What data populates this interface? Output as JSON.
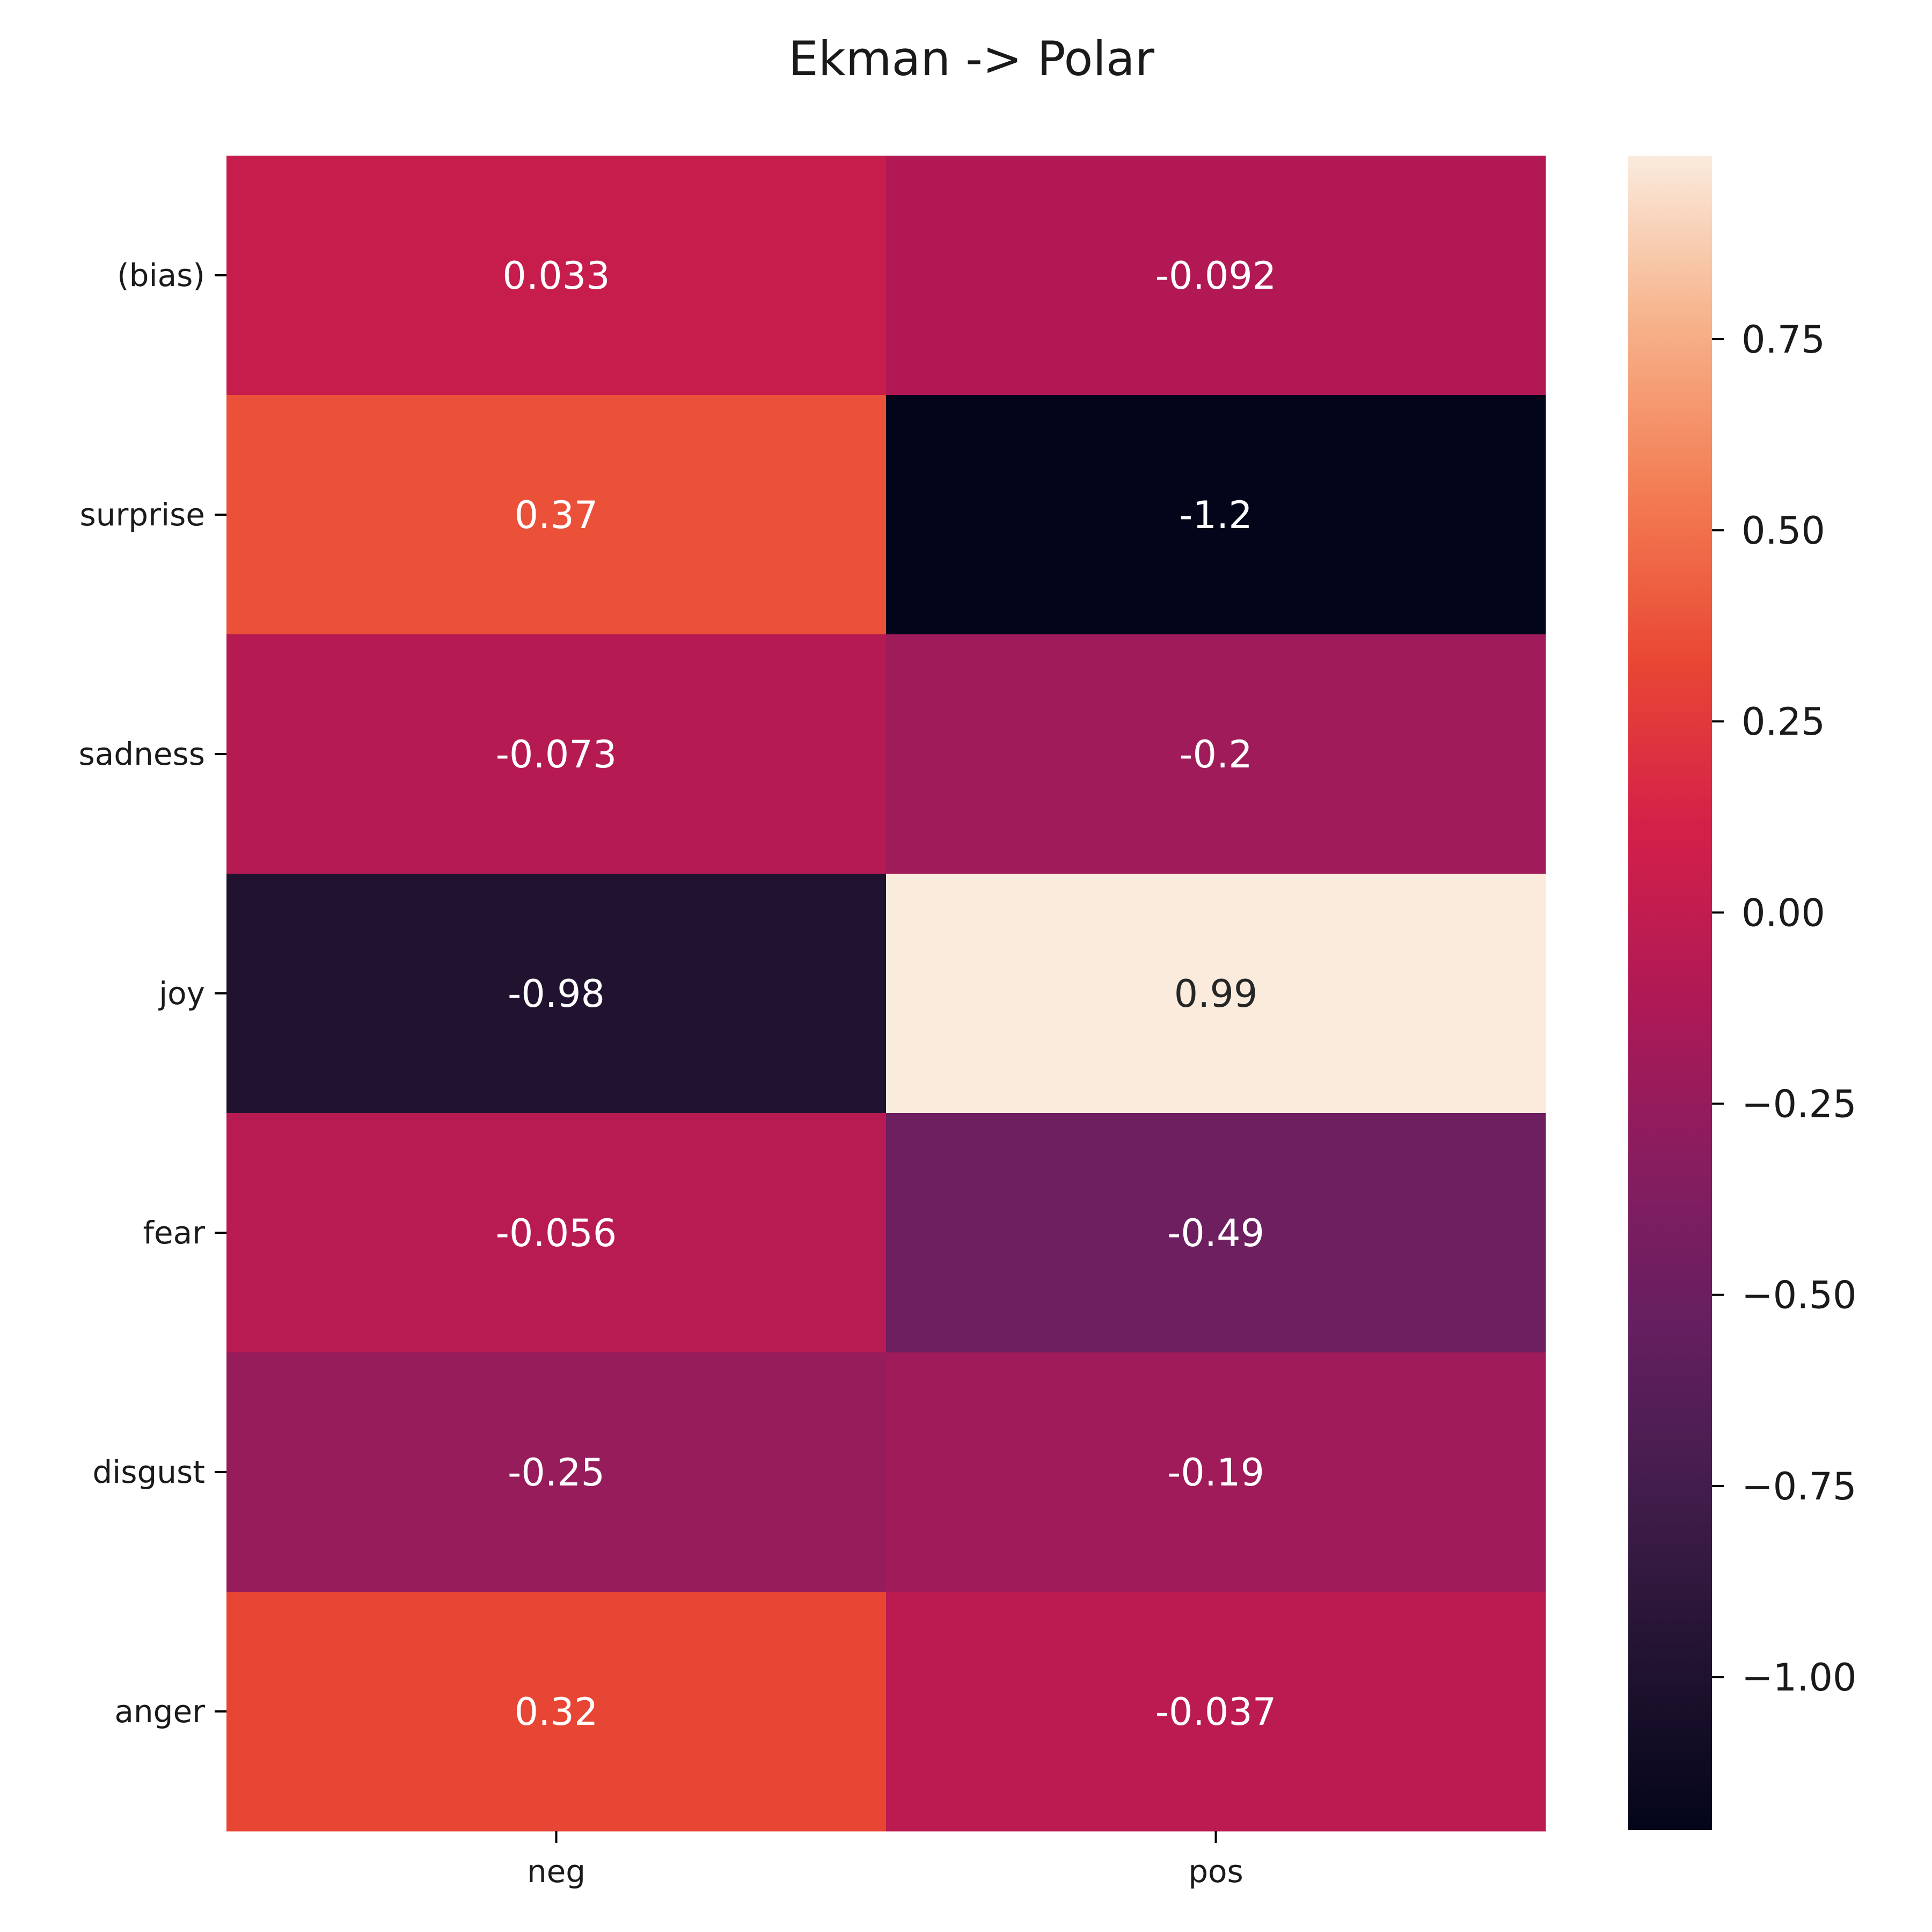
{
  "chart_data": {
    "type": "heatmap",
    "title": "Ekman -> Polar",
    "x_categories": [
      "neg",
      "pos"
    ],
    "y_categories": [
      "(bias)",
      "surprise",
      "sadness",
      "joy",
      "fear",
      "disgust",
      "anger"
    ],
    "values": [
      [
        0.033,
        -0.092
      ],
      [
        0.37,
        -1.2
      ],
      [
        -0.073,
        -0.2
      ],
      [
        -0.98,
        0.99
      ],
      [
        -0.056,
        -0.49
      ],
      [
        -0.25,
        -0.19
      ],
      [
        0.32,
        -0.037
      ]
    ],
    "cell_labels": [
      [
        "0.033",
        "-0.092"
      ],
      [
        "0.37",
        "-1.2"
      ],
      [
        "-0.073",
        "-0.2"
      ],
      [
        "-0.98",
        "0.99"
      ],
      [
        "-0.056",
        "-0.49"
      ],
      [
        "-0.25",
        "-0.19"
      ],
      [
        "0.32",
        "-0.037"
      ]
    ],
    "colorbar": {
      "vmin": -1.2,
      "vmax": 0.99,
      "ticks": [
        0.75,
        0.5,
        0.25,
        0.0,
        -0.25,
        -0.5,
        -0.75,
        -1.0
      ],
      "tick_labels": [
        "0.75",
        "0.50",
        "0.25",
        "0.00",
        "−0.25",
        "−0.50",
        "−0.75",
        "−1.00"
      ],
      "colormap": "rocket"
    },
    "grid": false
  }
}
